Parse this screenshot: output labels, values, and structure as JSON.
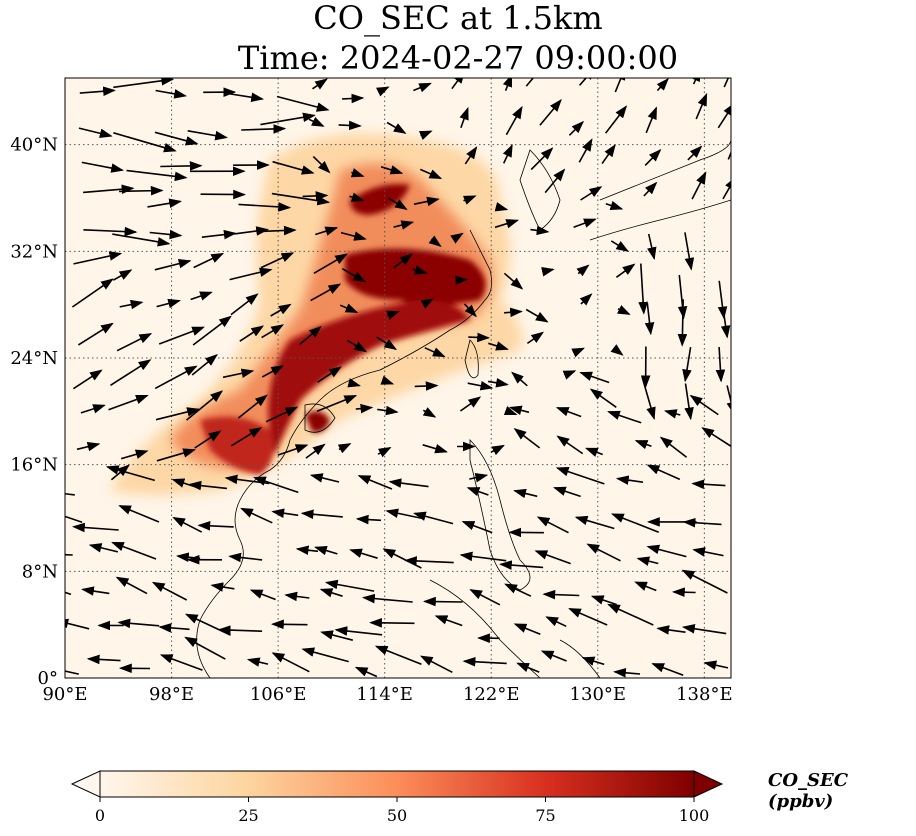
{
  "title": {
    "line1": "CO_SEC at 1.5km",
    "line2": "Time: 2024-02-27 09:00:00"
  },
  "map": {
    "lon_range": [
      90,
      140
    ],
    "lat_range": [
      0,
      45
    ],
    "lon_ticks": [
      "90°E",
      "98°E",
      "106°E",
      "114°E",
      "122°E",
      "130°E",
      "138°E"
    ],
    "lon_tick_values": [
      90,
      98,
      106,
      114,
      122,
      130,
      138
    ],
    "lat_ticks": [
      "0°",
      "8°N",
      "16°N",
      "24°N",
      "32°N",
      "40°N"
    ],
    "lat_tick_values": [
      0,
      8,
      16,
      24,
      32,
      40
    ],
    "gridlines": "dotted",
    "vector_field": "wind arrows"
  },
  "colorbar": {
    "label": "CO_SEC (ppbv)",
    "ticks": [
      "0",
      "25",
      "50",
      "75",
      "100"
    ],
    "min": 0,
    "max": 100,
    "extend": "both",
    "colors": [
      "#fff7ec",
      "#fdd49e",
      "#fc8d59",
      "#d7301f",
      "#7f0000"
    ]
  }
}
